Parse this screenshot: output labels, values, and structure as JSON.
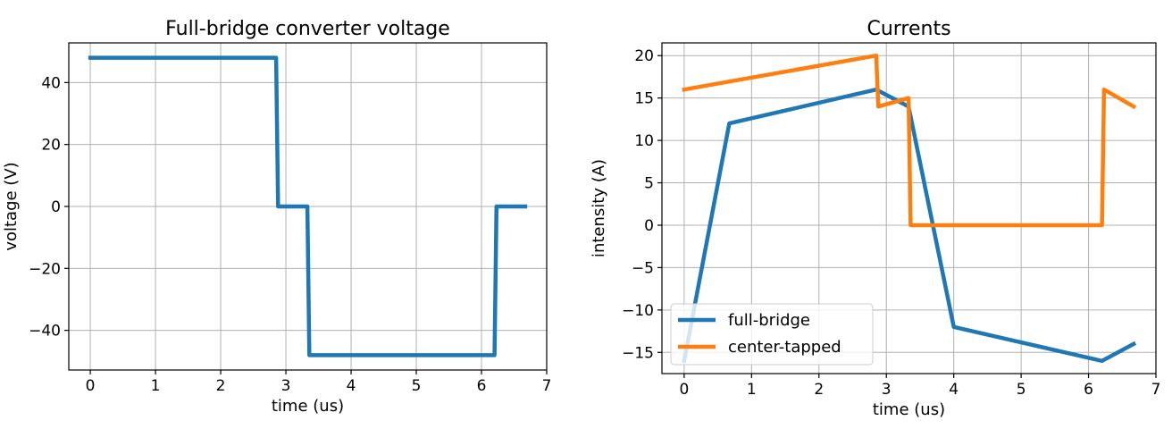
{
  "chart_data": [
    {
      "type": "line",
      "title": "Full-bridge converter voltage",
      "xlabel": "time (us)",
      "ylabel": "voltage (V)",
      "xlim": [
        -0.33,
        7.0
      ],
      "ylim": [
        -52.8,
        52.8
      ],
      "xticks": [
        0,
        1,
        2,
        3,
        4,
        5,
        6,
        7
      ],
      "yticks": [
        -40,
        -20,
        0,
        20,
        40
      ],
      "ytick_labels": [
        "−40",
        "−20",
        "0",
        "20",
        "40"
      ],
      "grid": true,
      "series": [
        {
          "color": "#1f77b4",
          "x": [
            0,
            2.85,
            2.88,
            3.33,
            3.36,
            6.2,
            6.23,
            6.67
          ],
          "y": [
            48,
            48,
            0,
            0,
            -48,
            -48,
            0,
            0
          ]
        }
      ]
    },
    {
      "type": "line",
      "title": "Currents",
      "xlabel": "time (us)",
      "ylabel": "intensity (A)",
      "xlim": [
        -0.33,
        7.0
      ],
      "ylim": [
        -17.5,
        21.5
      ],
      "xticks": [
        0,
        1,
        2,
        3,
        4,
        5,
        6,
        7
      ],
      "yticks": [
        -15,
        -10,
        -5,
        0,
        5,
        10,
        15,
        20
      ],
      "ytick_labels": [
        "−15",
        "−10",
        "−5",
        "0",
        "5",
        "10",
        "15",
        "20"
      ],
      "grid": true,
      "legend": "lower-left",
      "series": [
        {
          "name": "full-bridge",
          "color": "#1f77b4",
          "x": [
            0,
            0.67,
            2.85,
            3.33,
            4.0,
            6.2,
            6.67
          ],
          "y": [
            -16,
            12,
            16,
            14,
            -12,
            -16,
            -14
          ]
        },
        {
          "name": "center-tapped",
          "color": "#ff7f0e",
          "x": [
            0,
            2.85,
            2.88,
            3.33,
            3.36,
            6.2,
            6.23,
            6.67
          ],
          "y": [
            16,
            20,
            14,
            15,
            0,
            0,
            16,
            14
          ]
        }
      ]
    }
  ]
}
